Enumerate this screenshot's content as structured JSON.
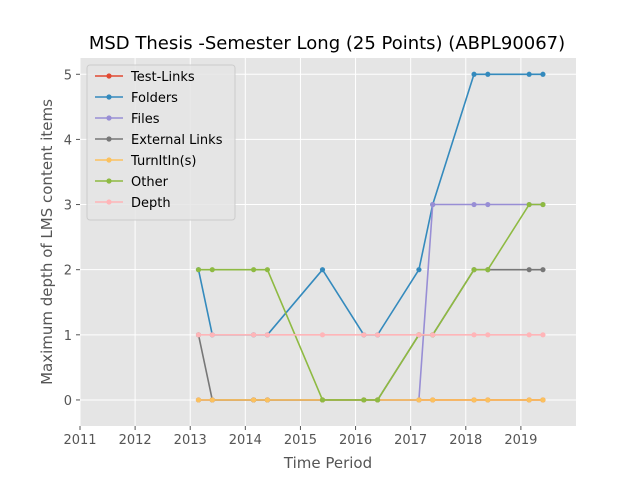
{
  "chart_data": {
    "type": "line",
    "title": "MSD Thesis -Semester Long (25 Points) (ABPL90067)",
    "xlabel": "Time Period",
    "ylabel": "Maximum depth of LMS content items",
    "xlim": [
      2011,
      2020
    ],
    "ylim": [
      -0.4,
      5.25
    ],
    "xticks": [
      2011,
      2012,
      2013,
      2014,
      2015,
      2016,
      2017,
      2018,
      2019
    ],
    "yticks": [
      0,
      1,
      2,
      3,
      4,
      5
    ],
    "grid": true,
    "legend_position": "top-left",
    "x": [
      2013.15,
      2013.4,
      2014.15,
      2014.4,
      2015.4,
      2016.15,
      2016.4,
      2017.15,
      2017.4,
      2018.15,
      2018.4,
      2019.15,
      2019.4
    ],
    "series": [
      {
        "name": "Test-Links",
        "color": "#E24A33",
        "values": [
          0,
          0,
          0,
          0,
          0,
          0,
          0,
          0,
          0,
          0,
          0,
          0,
          0
        ]
      },
      {
        "name": "Folders",
        "color": "#348ABD",
        "values": [
          2,
          1,
          1,
          1,
          2,
          1,
          1,
          2,
          3,
          5,
          5,
          5,
          5
        ]
      },
      {
        "name": "Files",
        "color": "#988ED5",
        "values": [
          0,
          0,
          0,
          0,
          0,
          0,
          0,
          0,
          3,
          3,
          3,
          3,
          3
        ]
      },
      {
        "name": "External Links",
        "color": "#777777",
        "values": [
          1,
          0,
          0,
          0,
          0,
          0,
          0,
          1,
          1,
          2,
          2,
          2,
          2
        ]
      },
      {
        "name": "TurnItIn(s)",
        "color": "#FBC15E",
        "values": [
          0,
          0,
          0,
          0,
          0,
          0,
          0,
          0,
          0,
          0,
          0,
          0,
          0
        ]
      },
      {
        "name": "Other",
        "color": "#8EBA42",
        "values": [
          2,
          2,
          2,
          2,
          0,
          0,
          0,
          1,
          1,
          2,
          2,
          3,
          3
        ]
      },
      {
        "name": "Depth",
        "color": "#FFB5B8",
        "values": [
          1,
          1,
          1,
          1,
          1,
          1,
          1,
          1,
          1,
          1,
          1,
          1,
          1
        ]
      }
    ]
  }
}
